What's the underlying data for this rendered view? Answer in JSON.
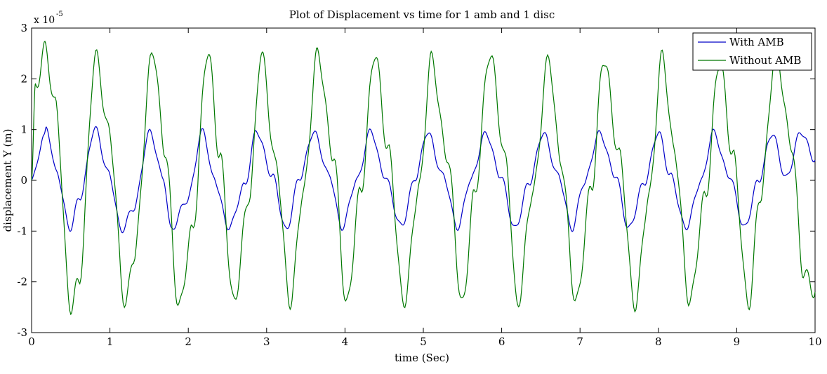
{
  "chart_data": {
    "type": "line",
    "title": "Plot of Displacement vs time for 1 amb and 1 disc",
    "xlabel": "time (Sec)",
    "ylabel": "displacement Y (m)",
    "y_exponent_base": "x 10",
    "y_exponent_power": "-5",
    "xlim": [
      0,
      10
    ],
    "ylim": [
      -3,
      3
    ],
    "x_ticks": [
      "0",
      "1",
      "2",
      "3",
      "4",
      "5",
      "6",
      "7",
      "8",
      "9",
      "10"
    ],
    "y_ticks": [
      "3",
      "2",
      "1",
      "0",
      "-1",
      "-2",
      "-3"
    ],
    "grid": false,
    "legend_position": "top-right",
    "series": [
      {
        "name": "With AMB",
        "color": "#0000c8",
        "x": [
          0,
          0.16,
          0.19,
          0.32,
          0.49,
          0.61,
          0.81,
          0.98,
          1.15,
          1.3,
          1.51,
          1.68,
          1.78,
          1.98,
          2.19,
          2.32,
          2.52,
          2.72,
          2.87,
          3.07,
          3.25,
          3.42,
          3.6,
          3.8,
          3.96,
          4.15,
          4.33,
          4.5,
          4.72,
          4.9,
          5.05,
          5.25,
          5.44,
          5.6,
          5.8,
          5.98,
          6.17,
          6.35,
          6.53,
          6.72,
          6.9,
          7.05,
          7.25,
          7.45,
          7.62,
          7.82,
          8,
          8.15,
          8.35,
          8.55,
          8.7,
          8.9,
          9.1,
          9.28,
          9.45,
          9.63,
          9.82,
          10
        ],
        "y": [
          0,
          0.85,
          1.02,
          0.15,
          -0.95,
          -0.35,
          1.02,
          0.15,
          -0.98,
          -0.55,
          0.95,
          0.05,
          -0.97,
          -0.4,
          0.98,
          0.05,
          -0.93,
          -0.1,
          0.97,
          0.1,
          -0.98,
          0.05,
          0.95,
          0.1,
          -0.93,
          0,
          0.98,
          0.1,
          -0.9,
          0.05,
          0.95,
          0.1,
          -0.93,
          0,
          0.93,
          0.1,
          -0.95,
          -0.05,
          0.93,
          0.1,
          -0.95,
          -0.05,
          0.93,
          0.1,
          -0.95,
          -0.05,
          0.95,
          0.1,
          -0.93,
          0,
          0.95,
          0.1,
          -0.93,
          0,
          0.92,
          0.05,
          0.95,
          0.4
        ]
      },
      {
        "name": "Without AMB",
        "color": "#007800",
        "x": [
          0,
          0.05,
          0.17,
          0.3,
          0.5,
          0.6,
          0.82,
          0.98,
          1.2,
          1.3,
          1.55,
          1.7,
          1.88,
          2.05,
          2.25,
          2.4,
          2.58,
          2.78,
          2.93,
          3.12,
          3.3,
          3.47,
          3.65,
          3.85,
          4.02,
          4.2,
          4.38,
          4.55,
          4.75,
          4.95,
          5.1,
          5.3,
          5.5,
          5.65,
          5.85,
          6.05,
          6.2,
          6.4,
          6.6,
          6.75,
          6.95,
          7.15,
          7.3,
          7.5,
          7.7,
          7.88,
          8.05,
          8.2,
          8.4,
          8.6,
          8.78,
          8.95,
          9.15,
          9.3,
          9.5,
          9.7,
          9.85,
          10
        ],
        "y": [
          0,
          1.8,
          2.6,
          1.5,
          -2.5,
          -2.0,
          2.45,
          1.0,
          -2.45,
          -1.5,
          2.55,
          0.6,
          -2.5,
          -1.0,
          2.55,
          0.5,
          -2.4,
          -0.3,
          2.5,
          0.3,
          -2.4,
          -0.2,
          2.5,
          0.5,
          -2.45,
          -0.2,
          2.5,
          0.6,
          -2.4,
          -0.1,
          2.4,
          0.5,
          -2.45,
          -0.3,
          2.5,
          0.4,
          -2.45,
          -0.2,
          2.4,
          0.4,
          -2.4,
          -0.1,
          2.4,
          0.5,
          -2.45,
          -0.3,
          2.45,
          0.6,
          -2.4,
          -0.3,
          2.35,
          0.5,
          -2.45,
          -0.3,
          2.5,
          0.7,
          -1.8,
          -2.2
        ]
      }
    ]
  }
}
